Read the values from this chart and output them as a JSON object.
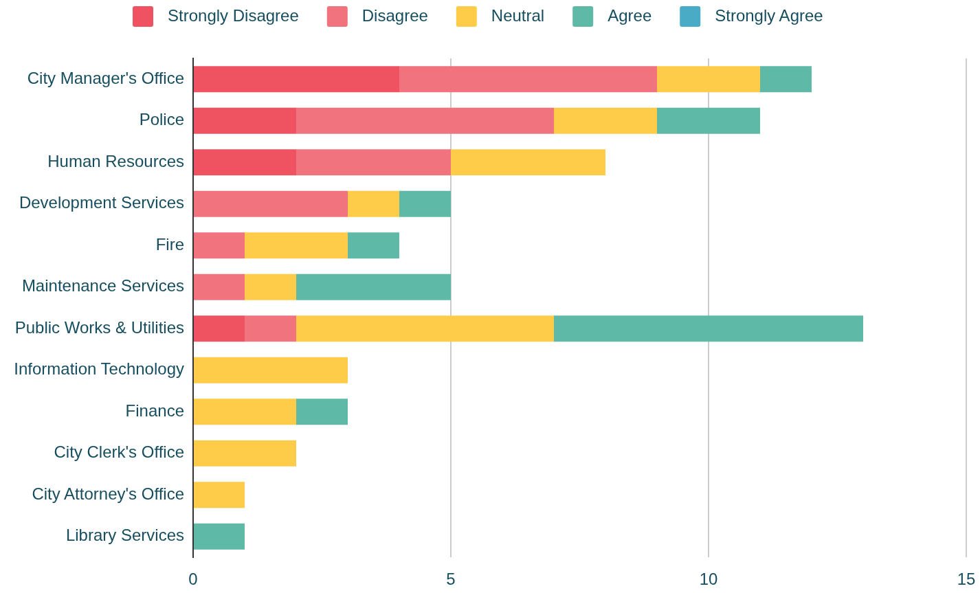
{
  "chart_data": {
    "type": "bar",
    "orientation": "horizontal",
    "stacked": true,
    "categories": [
      "City Manager's Office",
      "Police",
      "Human Resources",
      "Development Services",
      "Fire",
      "Maintenance Services",
      "Public Works & Utilities",
      "Information Technology",
      "Finance",
      "City Clerk's Office",
      "City Attorney's Office",
      "Library Services"
    ],
    "series": [
      {
        "name": "Strongly Disagree",
        "color": "#ef5261",
        "values": [
          4,
          2,
          2,
          0,
          0,
          0,
          1,
          0,
          0,
          0,
          0,
          0
        ]
      },
      {
        "name": "Disagree",
        "color": "#f1737d",
        "values": [
          5,
          5,
          3,
          3,
          1,
          1,
          1,
          0,
          0,
          0,
          0,
          0
        ]
      },
      {
        "name": "Neutral",
        "color": "#ffcc4a",
        "values": [
          2,
          2,
          3,
          1,
          2,
          1,
          5,
          3,
          2,
          2,
          1,
          0
        ]
      },
      {
        "name": "Agree",
        "color": "#5fb9a7",
        "values": [
          1,
          2,
          0,
          1,
          1,
          3,
          6,
          0,
          1,
          0,
          0,
          1
        ]
      },
      {
        "name": "Strongly Agree",
        "color": "#4aabc7",
        "values": [
          0,
          0,
          0,
          0,
          0,
          0,
          0,
          0,
          0,
          0,
          0,
          0
        ]
      }
    ],
    "xlim": [
      0,
      15
    ],
    "xticks": [
      0,
      5,
      10,
      15
    ],
    "grid": "x",
    "legend": "top"
  }
}
